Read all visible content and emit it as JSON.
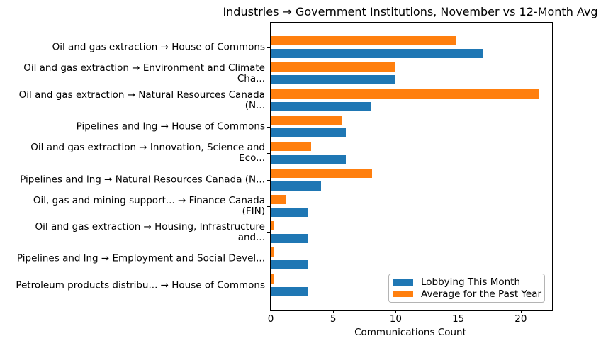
{
  "chart_data": {
    "type": "bar",
    "orientation": "horizontal",
    "title": "Industries → Government Institutions, November vs 12-Month Avg",
    "xlabel": "Communications Count",
    "ylabel": "",
    "categories": [
      "Oil and gas extraction → House of Commons",
      "Oil and gas extraction → Environment and Climate\nCha...",
      "Oil and gas extraction → Natural Resources Canada\n(N...",
      "Pipelines and lng → House of Commons",
      "Oil and gas extraction → Innovation, Science and\nEco...",
      "Pipelines and lng → Natural Resources Canada (N...",
      "Oil, gas and mining support... → Finance Canada\n(FIN)",
      "Oil and gas extraction → Housing, Infrastructure\nand...",
      "Pipelines and lng → Employment and Social Devel...",
      "Petroleum products distribu... → House of Commons"
    ],
    "series": [
      {
        "name": "Lobbying This Month",
        "color": "#1f77b4",
        "values": [
          17,
          10,
          8,
          6,
          6,
          4,
          3,
          3,
          3,
          3
        ]
      },
      {
        "name": "Average for the Past Year",
        "color": "#ff7f0e",
        "values": [
          14.8,
          9.9,
          21.5,
          5.7,
          3.2,
          8.1,
          1.2,
          0.2,
          0.3,
          0.2
        ]
      }
    ],
    "xlim": [
      0,
      22.5
    ],
    "xticks": [
      0,
      5,
      10,
      15,
      20
    ],
    "grid": false,
    "legend_position": "lower right",
    "background_color": "#ffffff",
    "axis_color": "#000000"
  }
}
